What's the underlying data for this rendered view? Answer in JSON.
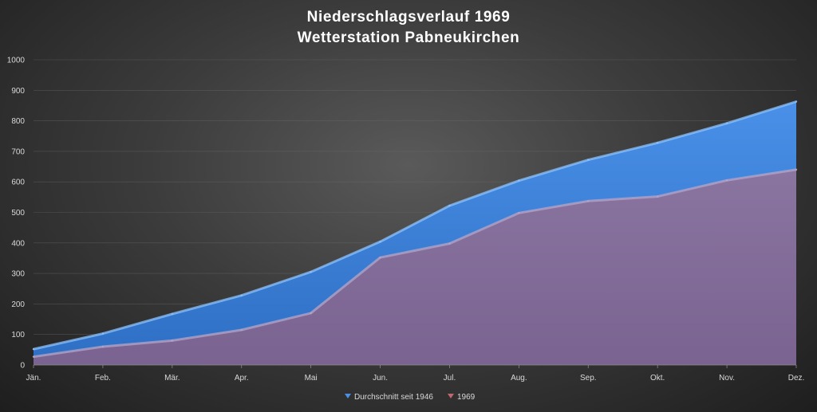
{
  "chart_data": {
    "type": "area",
    "title": [
      "Niederschlagsverlauf 1969",
      "Wetterstation Pabneukirchen"
    ],
    "xlabel": "",
    "ylabel": "",
    "categories": [
      "Jän.",
      "Feb.",
      "Mär.",
      "Apr.",
      "Mai",
      "Jun.",
      "Jul.",
      "Aug.",
      "Sep.",
      "Okt.",
      "Nov.",
      "Dez."
    ],
    "ylim": [
      0,
      1000
    ],
    "yticks": [
      0,
      100,
      200,
      300,
      400,
      500,
      600,
      700,
      800,
      900,
      1000
    ],
    "grid": true,
    "legend_position": "bottom",
    "series": [
      {
        "name": "Durchschnitt seit 1946",
        "color": "#3f86e0",
        "values": [
          52,
          103,
          167,
          228,
          305,
          404,
          522,
          604,
          672,
          728,
          792,
          863
        ]
      },
      {
        "name": "1969",
        "color": "#86709a",
        "values": [
          27,
          60,
          80,
          115,
          170,
          352,
          398,
          498,
          537,
          552,
          605,
          640
        ]
      }
    ]
  }
}
